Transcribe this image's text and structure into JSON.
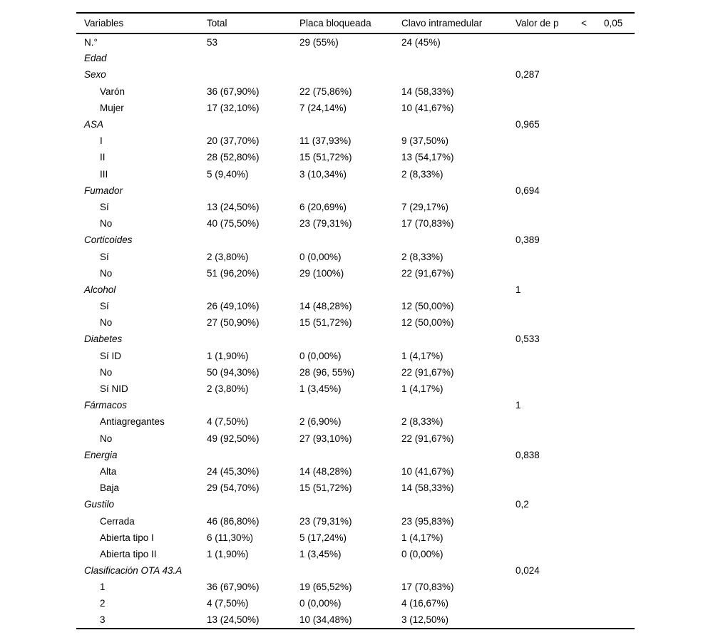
{
  "table": {
    "headers": [
      "Variables",
      "Total",
      "Placa bloqueada",
      "Clavo intramedular",
      "Valor de p",
      "<",
      "0,05"
    ],
    "rows": [
      {
        "label": "N.°",
        "indent": false,
        "italic": false,
        "total": "53",
        "placa": "29 (55%)",
        "clavo": "24 (45%)",
        "p": ""
      },
      {
        "label": "Edad",
        "indent": false,
        "italic": true,
        "total": "",
        "placa": "",
        "clavo": "",
        "p": ""
      },
      {
        "label": "Sexo",
        "indent": false,
        "italic": true,
        "total": "",
        "placa": "",
        "clavo": "",
        "p": "0,287"
      },
      {
        "label": "Varón",
        "indent": true,
        "italic": false,
        "total": "36 (67,90%)",
        "placa": "22 (75,86%)",
        "clavo": "14 (58,33%)",
        "p": ""
      },
      {
        "label": "Mujer",
        "indent": true,
        "italic": false,
        "total": "17 (32,10%)",
        "placa": "7 (24,14%)",
        "clavo": "10 (41,67%)",
        "p": ""
      },
      {
        "label": "ASA",
        "indent": false,
        "italic": true,
        "total": "",
        "placa": "",
        "clavo": "",
        "p": "0,965"
      },
      {
        "label": "I",
        "indent": true,
        "italic": false,
        "total": "20 (37,70%)",
        "placa": "11 (37,93%)",
        "clavo": "9 (37,50%)",
        "p": ""
      },
      {
        "label": "II",
        "indent": true,
        "italic": false,
        "total": "28 (52,80%)",
        "placa": "15 (51,72%)",
        "clavo": "13 (54,17%)",
        "p": ""
      },
      {
        "label": "III",
        "indent": true,
        "italic": false,
        "total": "5 (9,40%)",
        "placa": "3 (10,34%)",
        "clavo": "2 (8,33%)",
        "p": ""
      },
      {
        "label": "Fumador",
        "indent": false,
        "italic": true,
        "total": "",
        "placa": "",
        "clavo": "",
        "p": "0,694"
      },
      {
        "label": "Sí",
        "indent": true,
        "italic": false,
        "total": "13 (24,50%)",
        "placa": "6 (20,69%)",
        "clavo": "7 (29,17%)",
        "p": ""
      },
      {
        "label": "No",
        "indent": true,
        "italic": false,
        "total": "40 (75,50%)",
        "placa": "23 (79,31%)",
        "clavo": "17 (70,83%)",
        "p": ""
      },
      {
        "label": "Corticoides",
        "indent": false,
        "italic": true,
        "total": "",
        "placa": "",
        "clavo": "",
        "p": "0,389"
      },
      {
        "label": "Sí",
        "indent": true,
        "italic": false,
        "total": "2 (3,80%)",
        "placa": "0 (0,00%)",
        "clavo": "2 (8,33%)",
        "p": ""
      },
      {
        "label": "No",
        "indent": true,
        "italic": false,
        "total": "51 (96,20%)",
        "placa": "29 (100%)",
        "clavo": "22 (91,67%)",
        "p": ""
      },
      {
        "label": "Alcohol",
        "indent": false,
        "italic": true,
        "total": "",
        "placa": "",
        "clavo": "",
        "p": "1"
      },
      {
        "label": "Sí",
        "indent": true,
        "italic": false,
        "total": "26 (49,10%)",
        "placa": "14 (48,28%)",
        "clavo": "12 (50,00%)",
        "p": ""
      },
      {
        "label": "No",
        "indent": true,
        "italic": false,
        "total": "27 (50,90%)",
        "placa": "15 (51,72%)",
        "clavo": "12 (50,00%)",
        "p": ""
      },
      {
        "label": "Diabetes",
        "indent": false,
        "italic": true,
        "total": "",
        "placa": "",
        "clavo": "",
        "p": "0,533"
      },
      {
        "label": "Sí ID",
        "indent": true,
        "italic": false,
        "total": "1 (1,90%)",
        "placa": "0 (0,00%)",
        "clavo": "1 (4,17%)",
        "p": ""
      },
      {
        "label": "No",
        "indent": true,
        "italic": false,
        "total": "50 (94,30%)",
        "placa": "28 (96, 55%)",
        "clavo": "22 (91,67%)",
        "p": ""
      },
      {
        "label": "Sí NID",
        "indent": true,
        "italic": false,
        "total": "2 (3,80%)",
        "placa": "1 (3,45%)",
        "clavo": "1 (4,17%)",
        "p": ""
      },
      {
        "label": "Fármacos",
        "indent": false,
        "italic": true,
        "total": "",
        "placa": "",
        "clavo": "",
        "p": "1"
      },
      {
        "label": "Antiagregantes",
        "indent": true,
        "italic": false,
        "total": "4 (7,50%)",
        "placa": "2 (6,90%)",
        "clavo": "2 (8,33%)",
        "p": ""
      },
      {
        "label": "No",
        "indent": true,
        "italic": false,
        "total": "49 (92,50%)",
        "placa": "27 (93,10%)",
        "clavo": "22 (91,67%)",
        "p": ""
      },
      {
        "label": "Energia",
        "indent": false,
        "italic": true,
        "total": "",
        "placa": "",
        "clavo": "",
        "p": "0,838"
      },
      {
        "label": "Alta",
        "indent": true,
        "italic": false,
        "total": "24 (45,30%)",
        "placa": "14 (48,28%)",
        "clavo": "10 (41,67%)",
        "p": ""
      },
      {
        "label": "Baja",
        "indent": true,
        "italic": false,
        "total": "29 (54,70%)",
        "placa": "15 (51,72%)",
        "clavo": "14 (58,33%)",
        "p": ""
      },
      {
        "label": "Gustilo",
        "indent": false,
        "italic": true,
        "total": "",
        "placa": "",
        "clavo": "",
        "p": "0,2"
      },
      {
        "label": "Cerrada",
        "indent": true,
        "italic": false,
        "total": "46 (86,80%)",
        "placa": "23 (79,31%)",
        "clavo": "23 (95,83%)",
        "p": ""
      },
      {
        "label": "Abierta tipo I",
        "indent": true,
        "italic": false,
        "total": "6 (11,30%)",
        "placa": "5 (17,24%)",
        "clavo": "1 (4,17%)",
        "p": ""
      },
      {
        "label": "Abierta tipo II",
        "indent": true,
        "italic": false,
        "total": "1 (1,90%)",
        "placa": "1 (3,45%)",
        "clavo": "0 (0,00%)",
        "p": ""
      },
      {
        "label": "Clasificación OTA 43.A",
        "indent": false,
        "italic": true,
        "total": "",
        "placa": "",
        "clavo": "",
        "p": "0,024"
      },
      {
        "label": "1",
        "indent": true,
        "italic": false,
        "total": "36 (67,90%)",
        "placa": "19 (65,52%)",
        "clavo": "17 (70,83%)",
        "p": ""
      },
      {
        "label": "2",
        "indent": true,
        "italic": false,
        "total": "4 (7,50%)",
        "placa": "0 (0,00%)",
        "clavo": "4 (16,67%)",
        "p": ""
      },
      {
        "label": "3",
        "indent": true,
        "italic": false,
        "total": "13 (24,50%)",
        "placa": "10 (34,48%)",
        "clavo": "3 (12,50%)",
        "p": ""
      }
    ]
  }
}
